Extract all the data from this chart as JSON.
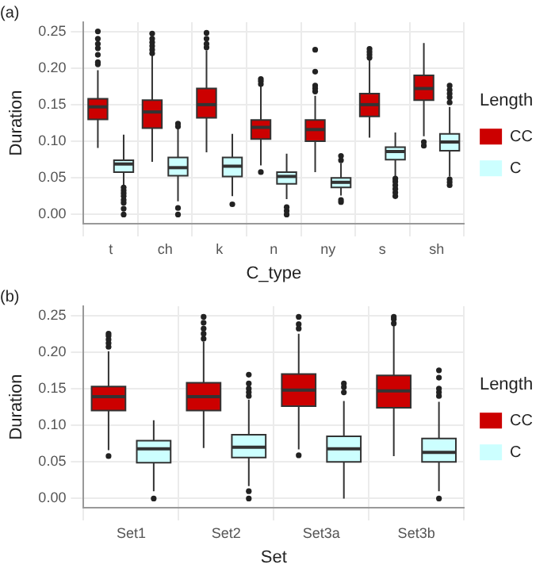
{
  "chart_data": [
    {
      "type": "box",
      "title": "(a)",
      "xlabel": "C_type",
      "ylabel": "Duration",
      "legend_title": "Length",
      "legend": "right",
      "grid": true,
      "categories": [
        "t",
        "ch",
        "k",
        "n",
        "ny",
        "s",
        "sh"
      ],
      "ylim": [
        -0.0125,
        0.2625
      ],
      "yticks": [
        {
          "value": 0,
          "label": "0.00"
        },
        {
          "value": 0.05,
          "label": "0.05"
        },
        {
          "value": 0.1,
          "label": "0.10"
        },
        {
          "value": 0.15,
          "label": "0.15"
        },
        {
          "value": 0.2,
          "label": "0.20"
        },
        {
          "value": 0.25,
          "label": "0.25"
        }
      ],
      "series": [
        {
          "name": "CC",
          "color": "#cc0000",
          "boxes": [
            {
              "low": 0.091,
              "q1": 0.13,
              "median": 0.147,
              "q3": 0.158,
              "high": 0.197,
              "outliers": [
                0.205,
                0.208,
                0.218,
                0.227,
                0.233,
                0.24,
                0.25
              ]
            },
            {
              "low": 0.072,
              "q1": 0.118,
              "median": 0.14,
              "q3": 0.156,
              "high": 0.217,
              "outliers": [
                0.22,
                0.225,
                0.23,
                0.235,
                0.24,
                0.247
              ]
            },
            {
              "low": 0.085,
              "q1": 0.132,
              "median": 0.15,
              "q3": 0.172,
              "high": 0.224,
              "outliers": [
                0.228,
                0.233,
                0.24,
                0.248
              ]
            },
            {
              "low": 0.067,
              "q1": 0.103,
              "median": 0.119,
              "q3": 0.129,
              "high": 0.175,
              "outliers": [
                0.058,
                0.178,
                0.182,
                0.185
              ]
            },
            {
              "low": 0.058,
              "q1": 0.1,
              "median": 0.116,
              "q3": 0.129,
              "high": 0.162,
              "outliers": [
                0.168,
                0.172,
                0.176,
                0.195,
                0.225
              ]
            },
            {
              "low": 0.105,
              "q1": 0.134,
              "median": 0.15,
              "q3": 0.165,
              "high": 0.211,
              "outliers": [
                0.214,
                0.218,
                0.222,
                0.226
              ]
            },
            {
              "low": 0.107,
              "q1": 0.156,
              "median": 0.172,
              "q3": 0.19,
              "high": 0.234,
              "outliers": [
                0.094,
                0.099
              ]
            }
          ]
        },
        {
          "name": "C",
          "color": "#ccffff",
          "boxes": [
            {
              "low": 0.04,
              "q1": 0.058,
              "median": 0.069,
              "q3": 0.074,
              "high": 0.109,
              "outliers": [
                0,
                0.008,
                0.016,
                0.02,
                0.025,
                0.029,
                0.033,
                0.037
              ]
            },
            {
              "low": 0.018,
              "q1": 0.053,
              "median": 0.064,
              "q3": 0.078,
              "high": 0.117,
              "outliers": [
                0,
                0.009,
                0.12,
                0.124
              ]
            },
            {
              "low": 0.025,
              "q1": 0.052,
              "median": 0.066,
              "q3": 0.078,
              "high": 0.11,
              "outliers": [
                0.014
              ]
            },
            {
              "low": 0.021,
              "q1": 0.042,
              "median": 0.052,
              "q3": 0.058,
              "high": 0.083,
              "outliers": [
                0,
                0.005,
                0.01
              ]
            },
            {
              "low": 0.026,
              "q1": 0.037,
              "median": 0.044,
              "q3": 0.05,
              "high": 0.07,
              "outliers": [
                0.017,
                0.02,
                0.074,
                0.08
              ]
            },
            {
              "low": 0.052,
              "q1": 0.075,
              "median": 0.086,
              "q3": 0.092,
              "high": 0.112,
              "outliers": [
                0.025,
                0.03,
                0.035,
                0.04,
                0.045,
                0.049
              ]
            },
            {
              "low": 0.052,
              "q1": 0.087,
              "median": 0.099,
              "q3": 0.11,
              "high": 0.147,
              "outliers": [
                0.04,
                0.044,
                0.048,
                0.153,
                0.16,
                0.165,
                0.17,
                0.176
              ]
            }
          ]
        }
      ]
    },
    {
      "type": "box",
      "title": "(b)",
      "xlabel": "Set",
      "ylabel": "Duration",
      "legend_title": "Length",
      "legend": "right",
      "grid": true,
      "categories": [
        "Set1",
        "Set2",
        "Set3a",
        "Set3b"
      ],
      "ylim": [
        -0.0125,
        0.2625
      ],
      "yticks": [
        {
          "value": 0,
          "label": "0.00"
        },
        {
          "value": 0.05,
          "label": "0.05"
        },
        {
          "value": 0.1,
          "label": "0.10"
        },
        {
          "value": 0.15,
          "label": "0.15"
        },
        {
          "value": 0.2,
          "label": "0.20"
        },
        {
          "value": 0.25,
          "label": "0.25"
        }
      ],
      "series": [
        {
          "name": "CC",
          "color": "#cc0000",
          "boxes": [
            {
              "low": 0.066,
              "q1": 0.12,
              "median": 0.139,
              "q3": 0.153,
              "high": 0.201,
              "outliers": [
                0.058,
                0.207,
                0.212,
                0.217,
                0.222,
                0.225
              ]
            },
            {
              "low": 0.069,
              "q1": 0.12,
              "median": 0.139,
              "q3": 0.158,
              "high": 0.214,
              "outliers": [
                0.218,
                0.225,
                0.232,
                0.24,
                0.248
              ]
            },
            {
              "low": 0.067,
              "q1": 0.126,
              "median": 0.148,
              "q3": 0.17,
              "high": 0.225,
              "outliers": [
                0.059,
                0.232,
                0.238,
                0.248
              ]
            },
            {
              "low": 0.058,
              "q1": 0.124,
              "median": 0.147,
              "q3": 0.168,
              "high": 0.237,
              "outliers": [
                0.239,
                0.245,
                0.248
              ]
            }
          ]
        },
        {
          "name": "C",
          "color": "#ccffff",
          "boxes": [
            {
              "low": 0.01,
              "q1": 0.049,
              "median": 0.068,
              "q3": 0.079,
              "high": 0.107,
              "outliers": [
                0
              ]
            },
            {
              "low": 0.017,
              "q1": 0.056,
              "median": 0.07,
              "q3": 0.087,
              "high": 0.135,
              "outliers": [
                0,
                0.01,
                0.14,
                0.145,
                0.15,
                0.157,
                0.169
              ]
            },
            {
              "low": 0,
              "q1": 0.05,
              "median": 0.068,
              "q3": 0.085,
              "high": 0.133,
              "outliers": [
                0.145,
                0.152,
                0.157
              ]
            },
            {
              "low": 0.01,
              "q1": 0.05,
              "median": 0.063,
              "q3": 0.082,
              "high": 0.132,
              "outliers": [
                0,
                0.14,
                0.145,
                0.15,
                0.165,
                0.175
              ]
            }
          ]
        }
      ]
    }
  ]
}
